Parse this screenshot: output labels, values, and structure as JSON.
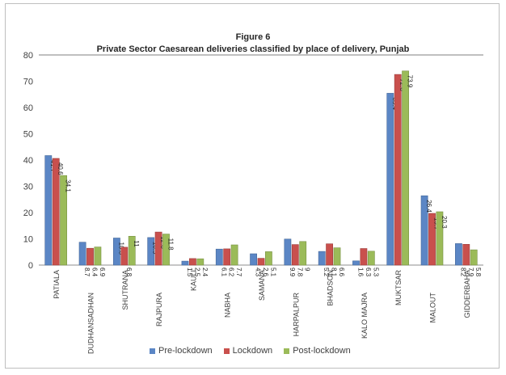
{
  "title": "Figure 6",
  "subtitle": "Private Sector Caesarean deliveries classified  by place of delivery, Punjab",
  "colors": {
    "Pre-lockdown": "#5b86c5",
    "Lockdown": "#c9504d",
    "Post-lockdown": "#9bbb59"
  },
  "chart_data": {
    "type": "bar",
    "title": "Figure 6",
    "subtitle": "Private Sector Caesarean deliveries classified  by place of delivery, Punjab",
    "categories": [
      "PATIALA",
      "DUDHANSADHAN",
      "SHUTRANA",
      "RAJPURA",
      "KAULI",
      "NABHA",
      "SAMANA",
      "HARPALPUR",
      "BHADSON",
      "KALO MAJRA",
      "MUKTSAR",
      "MALOUT",
      "GIDDERBAHA"
    ],
    "series": [
      {
        "name": "Pre-lockdown",
        "values": [
          41.7,
          8.7,
          10.3,
          10.5,
          1.5,
          6.1,
          4.3,
          9.9,
          5.2,
          1.6,
          65.4,
          26.4,
          8.2
        ]
      },
      {
        "name": "Lockdown",
        "values": [
          40.6,
          6.4,
          6.8,
          12.6,
          2.5,
          6.2,
          2.6,
          7.8,
          8.1,
          6.3,
          72.6,
          19.7,
          7.9
        ]
      },
      {
        "name": "Post-lockdown",
        "values": [
          34.1,
          6.9,
          11,
          11.8,
          2.4,
          7.7,
          5.1,
          9,
          6.6,
          5.3,
          73.9,
          20.3,
          5.8
        ]
      }
    ],
    "y_ticks": [
      0,
      10,
      20,
      30,
      40,
      50,
      60,
      70,
      80
    ],
    "ylim": [
      0,
      80
    ],
    "legend_position": "bottom",
    "grid": false
  }
}
